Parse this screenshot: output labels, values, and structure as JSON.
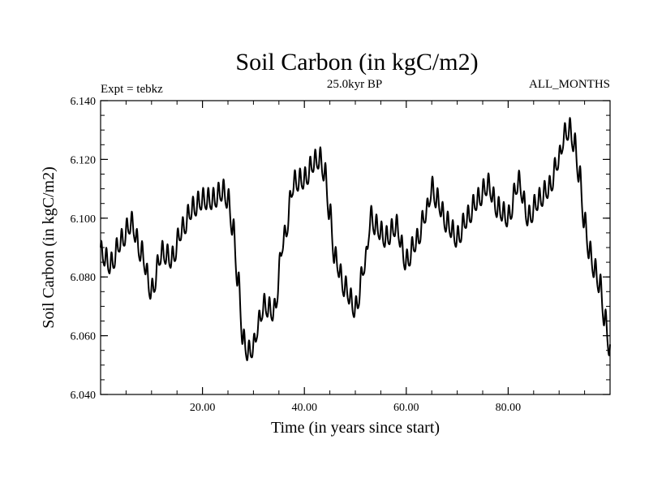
{
  "chart_data": {
    "type": "line",
    "title": "Soil Carbon (in kgC/m2)",
    "subtitle_left": "Expt = tebkz",
    "subtitle_center": "25.0kyr BP",
    "subtitle_right": "ALL_MONTHS",
    "xlabel": "Time (in years since start)",
    "ylabel": "Soil Carbon (in kgC/m2)",
    "xlim": [
      0,
      100
    ],
    "ylim": [
      6.04,
      6.14
    ],
    "xticks": [
      20,
      40,
      60,
      80
    ],
    "xtick_labels": [
      "20.00",
      "40.00",
      "60.00",
      "80.00"
    ],
    "yticks": [
      6.04,
      6.06,
      6.08,
      6.1,
      6.12,
      6.14
    ],
    "ytick_labels": [
      "6.040",
      "6.060",
      "6.080",
      "6.100",
      "6.120",
      "6.140"
    ],
    "series": [
      {
        "name": "Soil Carbon",
        "color": "#000000",
        "x": [
          0,
          2,
          4,
          6,
          8,
          10,
          12,
          14,
          16,
          18,
          20,
          22,
          24,
          25,
          26,
          27,
          28,
          29,
          30,
          31,
          32,
          34,
          36,
          38,
          40,
          42,
          43,
          44,
          45,
          46,
          48,
          50,
          52,
          53,
          54,
          56,
          58,
          60,
          62,
          64,
          65,
          66,
          68,
          70,
          72,
          74,
          76,
          78,
          80,
          82,
          84,
          86,
          88,
          90,
          91,
          92,
          93,
          94,
          95,
          96,
          97,
          98,
          99,
          100
        ],
        "y": [
          6.088,
          6.084,
          6.092,
          6.098,
          6.088,
          6.075,
          6.088,
          6.086,
          6.096,
          6.103,
          6.106,
          6.106,
          6.109,
          6.106,
          6.096,
          6.078,
          6.058,
          6.054,
          6.056,
          6.064,
          6.07,
          6.068,
          6.093,
          6.112,
          6.113,
          6.119,
          6.12,
          6.115,
          6.101,
          6.086,
          6.076,
          6.069,
          6.085,
          6.1,
          6.097,
          6.093,
          6.097,
          6.085,
          6.092,
          6.102,
          6.11,
          6.106,
          6.098,
          6.093,
          6.1,
          6.106,
          6.111,
          6.103,
          6.1,
          6.112,
          6.1,
          6.106,
          6.11,
          6.12,
          6.128,
          6.13,
          6.125,
          6.114,
          6.098,
          6.088,
          6.082,
          6.077,
          6.065,
          6.055
        ]
      }
    ]
  }
}
